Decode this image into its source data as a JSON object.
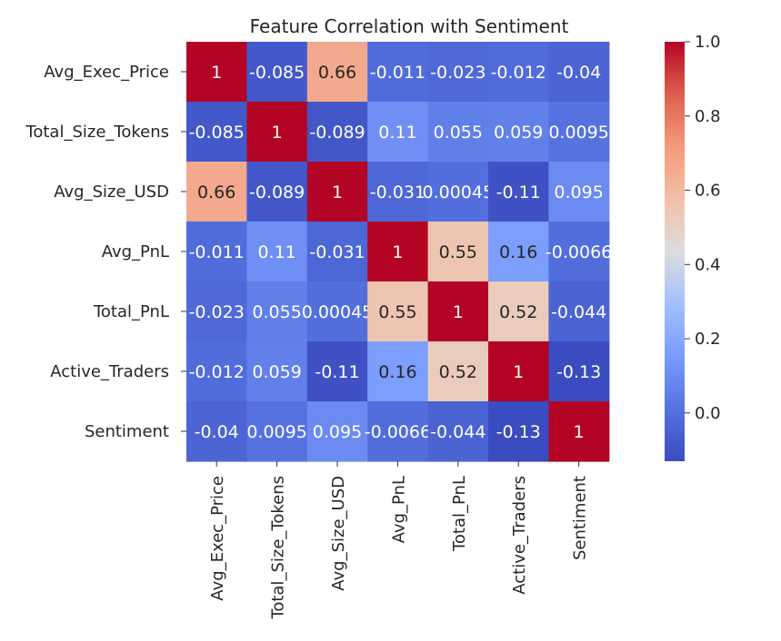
{
  "chart_data": {
    "type": "heatmap",
    "title": "Feature Correlation with Sentiment",
    "colormap": "coolwarm",
    "x_labels": [
      "Avg_Exec_Price",
      "Total_Size_Tokens",
      "Avg_Size_USD",
      "Avg_PnL",
      "Total_PnL",
      "Active_Traders",
      "Sentiment"
    ],
    "y_labels": [
      "Avg_Exec_Price",
      "Total_Size_Tokens",
      "Avg_Size_USD",
      "Avg_PnL",
      "Total_PnL",
      "Active_Traders",
      "Sentiment"
    ],
    "values": [
      [
        1,
        -0.085,
        0.66,
        -0.011,
        -0.023,
        -0.012,
        -0.04
      ],
      [
        -0.085,
        1,
        -0.089,
        0.11,
        0.055,
        0.059,
        0.0095
      ],
      [
        0.66,
        -0.089,
        1,
        -0.031,
        0.00045,
        -0.11,
        0.095
      ],
      [
        -0.011,
        0.11,
        -0.031,
        1,
        0.55,
        0.16,
        -0.0066
      ],
      [
        -0.023,
        0.055,
        0.00045,
        0.55,
        1,
        0.52,
        -0.044
      ],
      [
        -0.012,
        0.059,
        -0.11,
        0.16,
        0.52,
        1,
        -0.13
      ],
      [
        -0.04,
        0.0095,
        0.095,
        -0.0066,
        -0.044,
        -0.13,
        1
      ]
    ],
    "cell_labels": [
      [
        "1",
        "-0.085",
        "0.66",
        "-0.011",
        "-0.023",
        "-0.012",
        "-0.04"
      ],
      [
        "-0.085",
        "1",
        "-0.089",
        "0.11",
        "0.055",
        "0.059",
        "0.0095"
      ],
      [
        "0.66",
        "-0.089",
        "1",
        "-0.031",
        "0.00045",
        "-0.11",
        "0.095"
      ],
      [
        "-0.011",
        "0.11",
        "-0.031",
        "1",
        "0.55",
        "0.16",
        "-0.0066"
      ],
      [
        "-0.023",
        "0.055",
        "0.00045",
        "0.55",
        "1",
        "0.52",
        "-0.044"
      ],
      [
        "-0.012",
        "0.059",
        "-0.11",
        "0.16",
        "0.52",
        "1",
        "-0.13"
      ],
      [
        "-0.04",
        "0.0095",
        "0.095",
        "-0.0066",
        "-0.044",
        "-0.13",
        "1"
      ]
    ],
    "colorbar": {
      "vmin": -0.13,
      "vmax": 1,
      "ticks": [
        0.0,
        0.2,
        0.4,
        0.6,
        0.8,
        1.0
      ],
      "tick_labels": [
        "0.0",
        "0.2",
        "0.4",
        "0.6",
        "0.8",
        "1.0"
      ]
    }
  }
}
